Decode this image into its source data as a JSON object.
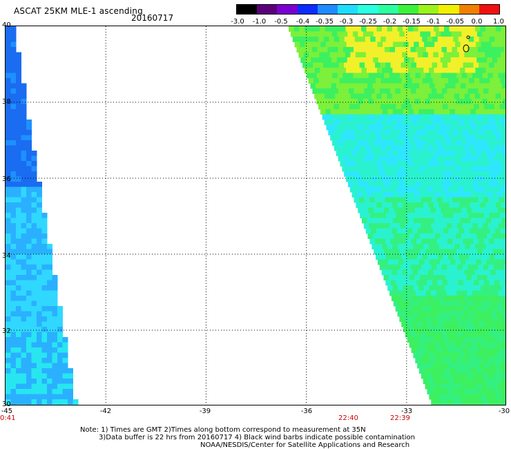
{
  "header": {
    "title": "ASCAT 25KM MLE-1 ascending",
    "date": "20160717"
  },
  "colorbar": {
    "ticks": [
      "-3.0",
      "-1.0",
      "-0.5",
      "-0.4",
      "-0.35",
      "-0.3",
      "-0.25",
      "-0.2",
      "-0.15",
      "-0.1",
      "-0.05",
      "0.0",
      "1.0"
    ],
    "colors": [
      "#000000",
      "#5a007a",
      "#7a00d0",
      "#0a2cff",
      "#1e8cff",
      "#1edcff",
      "#2affe0",
      "#2affa0",
      "#3cf23c",
      "#9cf21c",
      "#f0f000",
      "#f08000",
      "#f01010"
    ]
  },
  "map": {
    "y_ticks": [
      "40",
      "38",
      "36",
      "34",
      "32",
      "30"
    ],
    "x_ticks": [
      "-45",
      "-42",
      "-39",
      "-36",
      "-33",
      "-30"
    ],
    "lat_range": [
      30,
      40
    ],
    "lon_range": [
      -45,
      -30
    ],
    "swath_left_colors": [
      "#1a6cf0",
      "#1e90ff",
      "#2ab0ff",
      "#30d8ff",
      "#28e6f0"
    ],
    "swath_right_colors": [
      "#f2f02a",
      "#7cf03a",
      "#34f080",
      "#2af2d0",
      "#2ee6ff",
      "#3cf060"
    ]
  },
  "times": [
    {
      "label": "0:41"
    },
    {
      "label": "22:40"
    },
    {
      "label": "22:39"
    }
  ],
  "notes": [
    "Note: 1) Times are GMT 2)Times along bottom correspond to measurement at 35N",
    "3)Data buffer is 22 hrs from 20160717 4) Black wind barbs indicate possible contamination",
    "NOAA/NESDIS/Center for Satellite Applications and Research"
  ]
}
